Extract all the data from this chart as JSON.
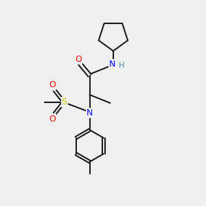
{
  "background_color": "#f0f0f0",
  "bond_color": "#1a1a1a",
  "atom_colors": {
    "O": "#ff0000",
    "N": "#0000ff",
    "S": "#cccc00",
    "H": "#4d9999",
    "C": "#1a1a1a"
  },
  "figsize": [
    3.0,
    3.0
  ],
  "dpi": 100
}
